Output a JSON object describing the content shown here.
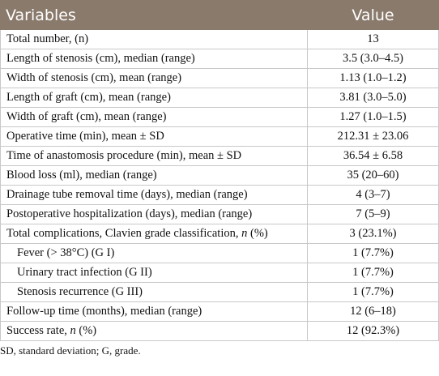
{
  "header": {
    "columns": [
      "Variables",
      "Value"
    ]
  },
  "table": {
    "rows": [
      {
        "label": "Total number, (n)",
        "value": "13"
      },
      {
        "label": "Length of stenosis (cm), median (range)",
        "value": "3.5 (3.0–4.5)"
      },
      {
        "label": "Width of stenosis (cm), mean (range)",
        "value": "1.13 (1.0–1.2)"
      },
      {
        "label": "Length of graft (cm), mean (range)",
        "value": "3.81 (3.0–5.0)"
      },
      {
        "label": "Width of graft (cm), mean (range)",
        "value": "1.27 (1.0–1.5)"
      },
      {
        "label": "Operative time (min), mean ± SD",
        "value": "212.31 ± 23.06"
      },
      {
        "label": "Time of anastomosis procedure (min), mean ± SD",
        "value": "36.54 ± 6.58"
      },
      {
        "label": "Blood loss (ml), median (range)",
        "value": "35 (20–60)"
      },
      {
        "label": "Drainage tube removal time (days), median (range)",
        "value": "4 (3–7)"
      },
      {
        "label": "Postoperative hospitalization (days), median (range)",
        "value": "7 (5–9)"
      },
      {
        "label": [
          "Total complications, Clavien grade classification, ",
          "n",
          " (%)"
        ],
        "value": "3 (23.1%)",
        "subrows": [
          {
            "label": "Fever (> 38°C) (G I)",
            "value": "1 (7.7%)"
          },
          {
            "label": "Urinary tract infection (G II)",
            "value": "1 (7.7%)"
          },
          {
            "label": "Stenosis recurrence (G III)",
            "value": "1 (7.7%)"
          }
        ]
      },
      {
        "label": "Follow-up time (months), median (range)",
        "value": "12 (6–18)"
      },
      {
        "label": [
          "Success rate, ",
          "n",
          " (%)"
        ],
        "value": "12 (92.3%)"
      }
    ]
  },
  "footnote": "SD, standard deviation; G, grade."
}
